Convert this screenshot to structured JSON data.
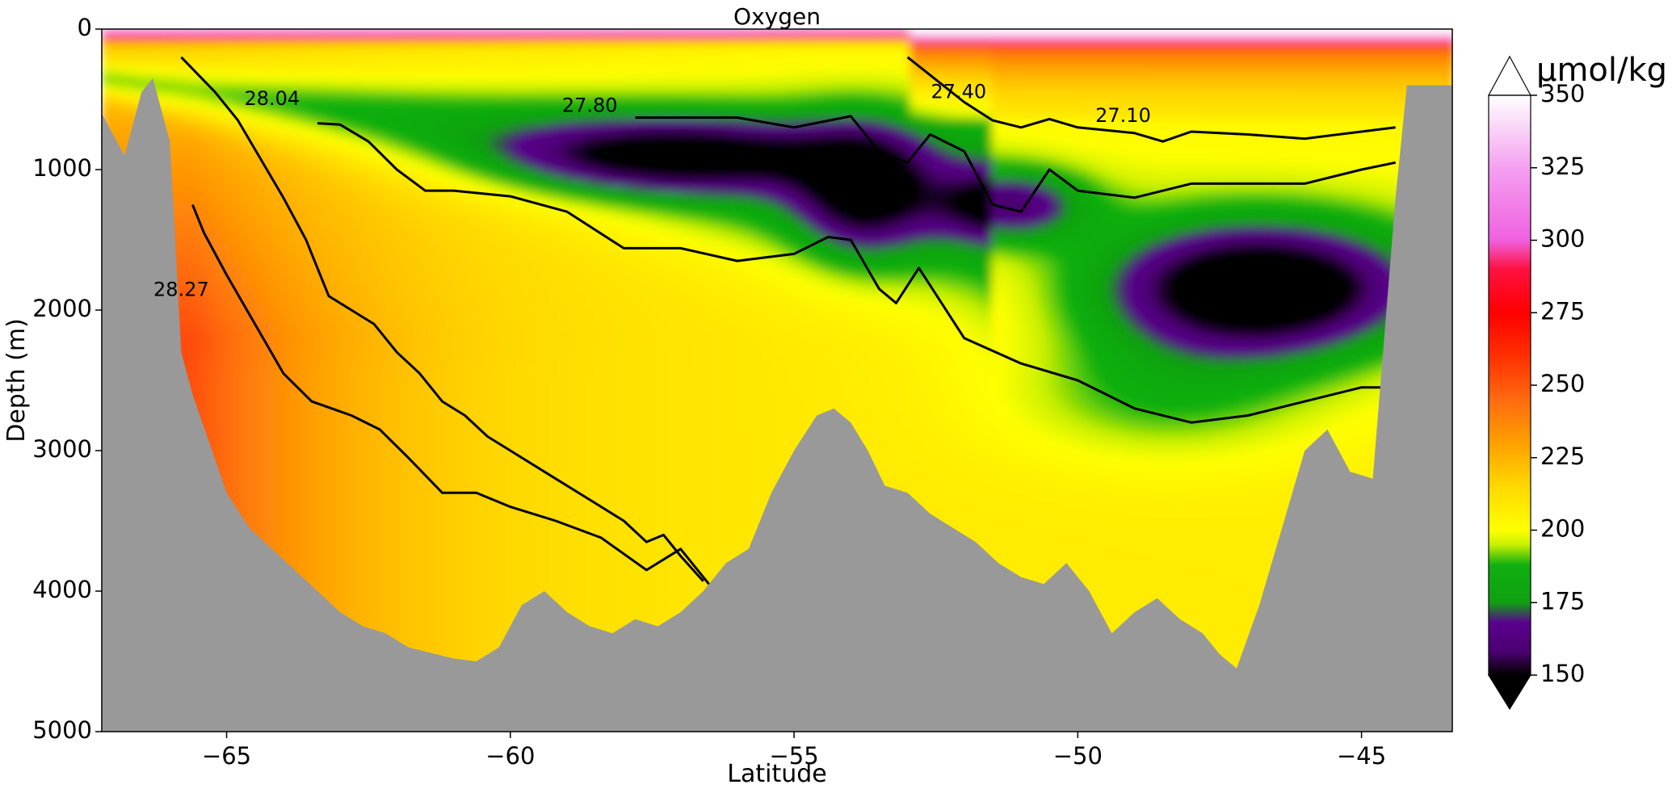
{
  "chart_data": {
    "type": "heatmap",
    "title": "Oxygen",
    "xlabel": "Latitude",
    "ylabel": "Depth (m)",
    "xlim": [
      -67.2,
      -43.4
    ],
    "ylim": [
      5000,
      0
    ],
    "xticks": [
      -65,
      -60,
      -55,
      -50,
      -45
    ],
    "xtick_labels": [
      "−65",
      "−60",
      "−55",
      "−50",
      "−45"
    ],
    "yticks": [
      0,
      1000,
      2000,
      3000,
      4000,
      5000
    ],
    "ytick_labels": [
      "0",
      "1000",
      "2000",
      "3000",
      "4000",
      "5000"
    ],
    "colorbar": {
      "label": "µmol/kg",
      "range": [
        150,
        350
      ],
      "ticks": [
        150,
        175,
        200,
        225,
        250,
        275,
        300,
        325,
        350
      ],
      "tick_labels": [
        "150",
        "175",
        "200",
        "225",
        "250",
        "275",
        "300",
        "325",
        "350"
      ],
      "extend": "both",
      "stops": [
        {
          "v": 150,
          "c": "#000000"
        },
        {
          "v": 158,
          "c": "#4b0070"
        },
        {
          "v": 168,
          "c": "#5a0090"
        },
        {
          "v": 175,
          "c": "#10a010"
        },
        {
          "v": 188,
          "c": "#10b010"
        },
        {
          "v": 195,
          "c": "#c8f000"
        },
        {
          "v": 200,
          "c": "#ffff00"
        },
        {
          "v": 215,
          "c": "#ffd800"
        },
        {
          "v": 230,
          "c": "#ffa000"
        },
        {
          "v": 245,
          "c": "#ff6a10"
        },
        {
          "v": 260,
          "c": "#ff3000"
        },
        {
          "v": 275,
          "c": "#ff0000"
        },
        {
          "v": 290,
          "c": "#ff1040"
        },
        {
          "v": 300,
          "c": "#f060e0"
        },
        {
          "v": 325,
          "c": "#f4a0f0"
        },
        {
          "v": 350,
          "c": "#ffffff"
        }
      ]
    },
    "bathymetry": {
      "lat": [
        -67.2,
        -66.8,
        -66.5,
        -66.3,
        -66.0,
        -65.8,
        -65.6,
        -65.3,
        -65.0,
        -64.6,
        -64.2,
        -63.8,
        -63.4,
        -63.0,
        -62.6,
        -62.2,
        -61.8,
        -61.3,
        -61.0,
        -60.6,
        -60.2,
        -59.8,
        -59.4,
        -59.0,
        -58.6,
        -58.2,
        -57.8,
        -57.4,
        -57.0,
        -56.6,
        -56.2,
        -55.8,
        -55.4,
        -55.0,
        -54.6,
        -54.3,
        -54.0,
        -53.7,
        -53.4,
        -53.0,
        -52.6,
        -52.2,
        -51.8,
        -51.4,
        -51.0,
        -50.6,
        -50.2,
        -49.8,
        -49.4,
        -49.0,
        -48.6,
        -48.2,
        -47.8,
        -47.5,
        -47.2,
        -46.8,
        -46.4,
        -46.0,
        -45.6,
        -45.2,
        -44.8,
        -44.4,
        -44.2,
        -43.4
      ],
      "depth": [
        600,
        900,
        450,
        350,
        800,
        2300,
        2600,
        2950,
        3300,
        3550,
        3700,
        3850,
        4000,
        4150,
        4250,
        4300,
        4400,
        4450,
        4480,
        4500,
        4400,
        4100,
        4000,
        4150,
        4250,
        4300,
        4200,
        4250,
        4150,
        4000,
        3800,
        3700,
        3300,
        3000,
        2750,
        2700,
        2800,
        3000,
        3250,
        3300,
        3450,
        3550,
        3650,
        3800,
        3900,
        3950,
        3800,
        4000,
        4300,
        4150,
        4050,
        4200,
        4300,
        4450,
        4550,
        4100,
        3550,
        3000,
        2850,
        3150,
        3200,
        1200,
        400,
        400
      ]
    },
    "isopycnals": [
      {
        "label": "27.10",
        "label_lat": -49.2,
        "label_depth": 620,
        "lat": [
          -53.0,
          -52.0,
          -51.5,
          -51.0,
          -50.5,
          -50.0,
          -49.5,
          -49.0,
          -48.5,
          -48.0,
          -47.0,
          -46.0,
          -45.0,
          -44.4
        ],
        "depth": [
          200,
          520,
          650,
          700,
          640,
          700,
          720,
          740,
          800,
          730,
          750,
          780,
          730,
          700
        ]
      },
      {
        "label": "27.40",
        "label_lat": -52.1,
        "label_depth": 450,
        "lat": [
          -57.8,
          -56.0,
          -55.0,
          -54.0,
          -53.5,
          -53.0,
          -52.6,
          -52.0,
          -51.5,
          -51.0,
          -50.5,
          -50.0,
          -49.0,
          -48.0,
          -47.0,
          -46.0,
          -45.0,
          -44.4
        ],
        "depth": [
          630,
          630,
          700,
          620,
          870,
          950,
          750,
          870,
          1250,
          1300,
          1000,
          1150,
          1200,
          1100,
          1100,
          1100,
          1000,
          950
        ]
      },
      {
        "label": "27.80",
        "label_lat": -58.6,
        "label_depth": 550,
        "lat": [
          -63.4,
          -63.0,
          -62.5,
          -62.0,
          -61.5,
          -61.0,
          -60.0,
          -59.0,
          -58.0,
          -57.0,
          -56.0,
          -55.0,
          -54.4,
          -54.0,
          -53.5,
          -53.2,
          -52.8,
          -52.0,
          -51.0,
          -50.0,
          -49.5,
          -49.0,
          -48.0,
          -47.0,
          -46.0,
          -45.0,
          -44.6
        ],
        "depth": [
          670,
          680,
          800,
          1000,
          1150,
          1150,
          1190,
          1300,
          1560,
          1560,
          1650,
          1600,
          1480,
          1500,
          1850,
          1950,
          1700,
          2200,
          2380,
          2500,
          2600,
          2700,
          2800,
          2750,
          2650,
          2550,
          2550
        ]
      },
      {
        "label": "28.04",
        "label_lat": -64.2,
        "label_depth": 500,
        "lat": [
          -65.8,
          -65.2,
          -64.8,
          -64.0,
          -63.6,
          -63.2,
          -62.8,
          -62.4,
          -62.0,
          -61.6,
          -61.2,
          -60.8,
          -60.4,
          -60.0,
          -59.2,
          -58.6,
          -58.0,
          -57.6,
          -57.3,
          -57.0,
          -56.6
        ],
        "depth": [
          200,
          450,
          650,
          1200,
          1500,
          1900,
          2000,
          2100,
          2300,
          2450,
          2650,
          2750,
          2900,
          3000,
          3200,
          3350,
          3500,
          3650,
          3600,
          3750,
          3930
        ]
      },
      {
        "label": "28.27",
        "label_lat": -65.8,
        "label_depth": 1860,
        "lat": [
          -65.6,
          -65.4,
          -65.0,
          -64.5,
          -64.0,
          -63.5,
          -62.8,
          -62.3,
          -61.8,
          -61.2,
          -60.6,
          -60.0,
          -59.2,
          -58.4,
          -57.6,
          -57.0,
          -56.5
        ],
        "depth": [
          1250,
          1450,
          1750,
          2100,
          2450,
          2650,
          2750,
          2850,
          3050,
          3300,
          3300,
          3400,
          3500,
          3620,
          3850,
          3700,
          3950
        ]
      }
    ]
  }
}
